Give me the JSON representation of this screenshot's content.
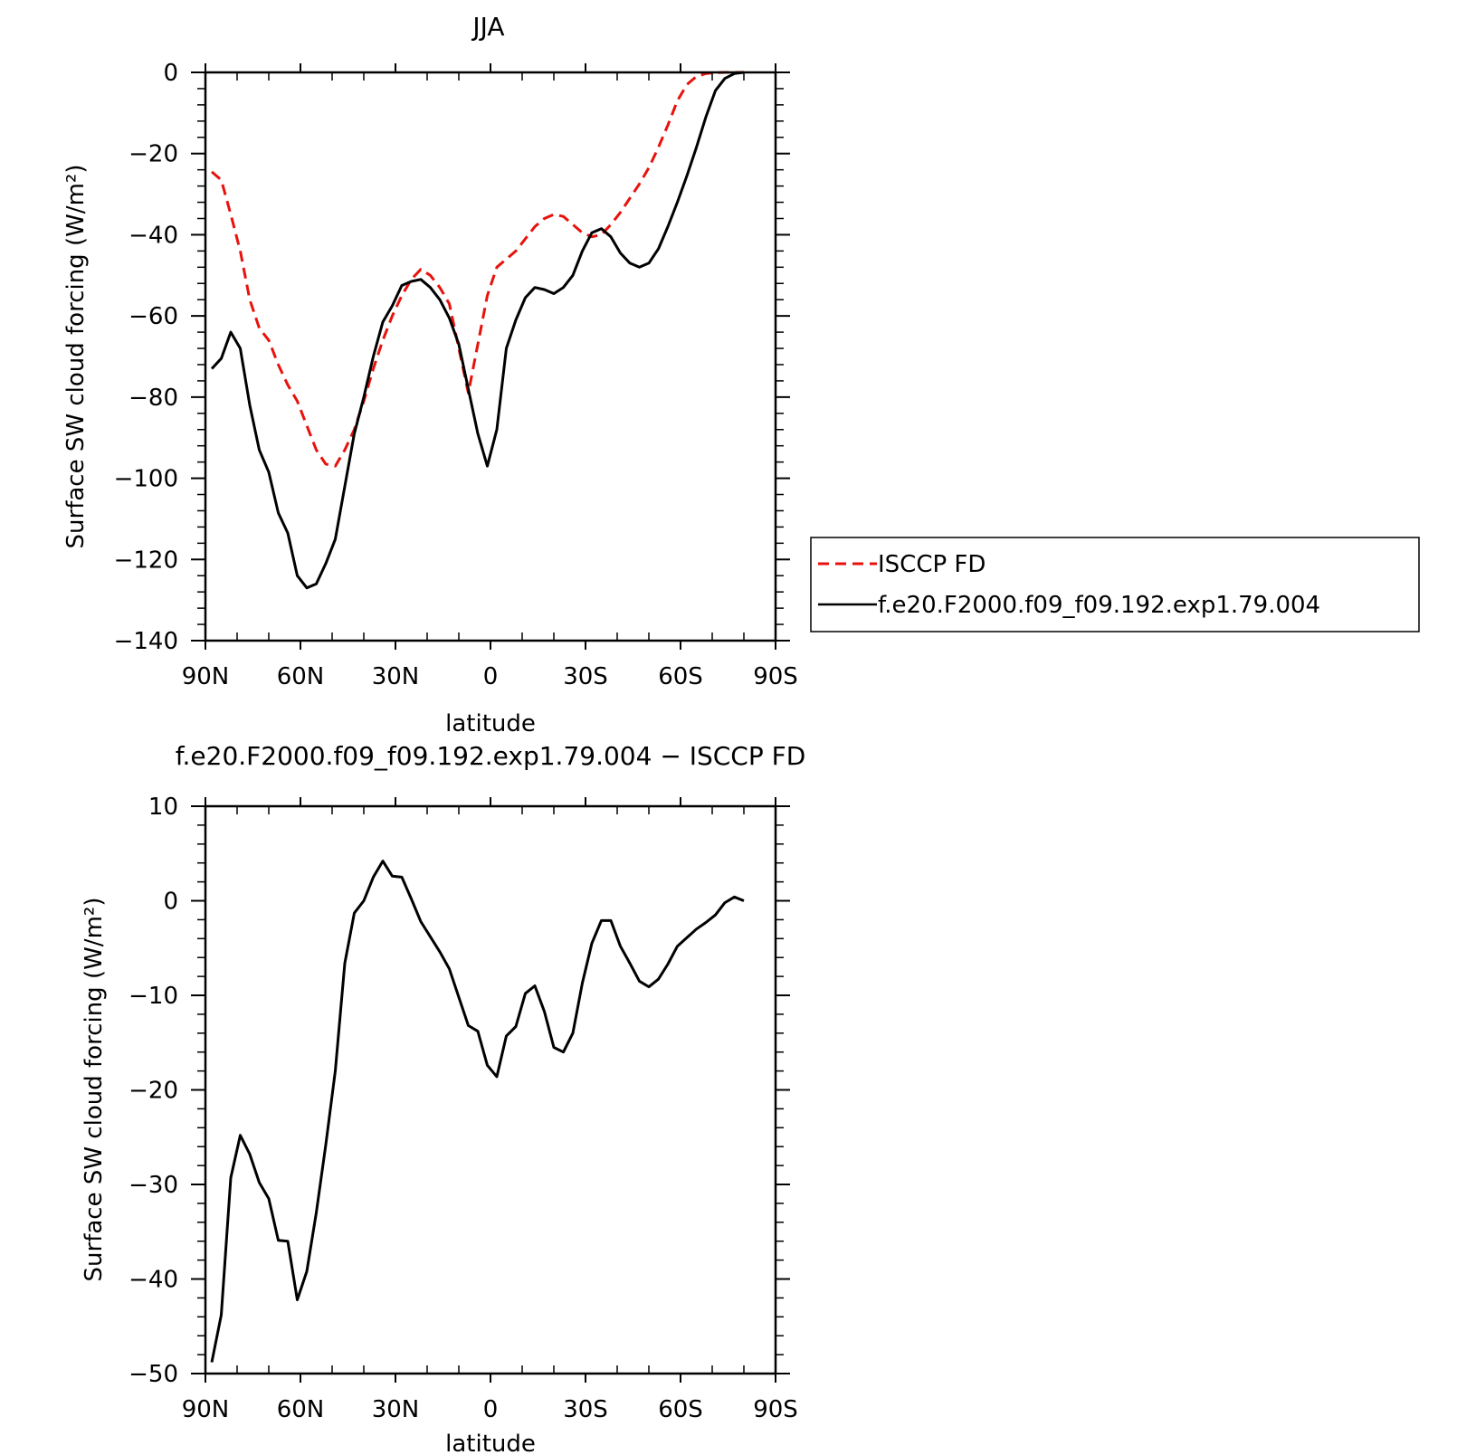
{
  "chart_data": [
    {
      "type": "line",
      "title": "JJA",
      "xlabel": "latitude",
      "ylabel": "Surface SW cloud forcing (W/m²)",
      "xlim": [
        90,
        -90
      ],
      "ylim": [
        -140,
        0
      ],
      "x_ticks": [
        90,
        60,
        30,
        0,
        -30,
        -60,
        -90
      ],
      "x_tick_labels": [
        "90N",
        "60N",
        "30N",
        "0",
        "30S",
        "60S",
        "90S"
      ],
      "y_ticks": [
        0,
        -20,
        -40,
        -60,
        -80,
        -100,
        -120,
        -140
      ],
      "y_tick_labels": [
        "0",
        "−20",
        "−40",
        "−60",
        "−80",
        "−100",
        "−120",
        "−140"
      ],
      "legend": {
        "position": "right"
      },
      "series": [
        {
          "name": "ISCCP FD",
          "color": "#e8120c",
          "style": "dashed",
          "x": [
            88,
            85,
            82,
            79,
            76,
            73,
            70,
            67,
            64,
            61,
            58,
            55,
            52,
            49,
            46,
            43,
            40,
            37,
            34,
            31,
            28,
            25,
            22,
            19,
            16,
            13,
            10,
            7,
            4,
            1,
            -2,
            -5,
            -8,
            -11,
            -14,
            -17,
            -20,
            -23,
            -26,
            -29,
            -32,
            -35,
            -38,
            -41,
            -44,
            -47,
            -50,
            -53,
            -56,
            -59,
            -62,
            -65,
            -68,
            -71,
            -74,
            -77,
            -80
          ],
          "values": [
            -24.5,
            -26.5,
            -35,
            -44,
            -56,
            -63,
            -66,
            -72,
            -77,
            -81,
            -87,
            -93,
            -96.5,
            -97,
            -93,
            -88,
            -81,
            -73,
            -66,
            -60,
            -55,
            -51,
            -48.5,
            -50,
            -53,
            -57,
            -68,
            -79,
            -67,
            -55,
            -48,
            -46,
            -44,
            -41,
            -38,
            -36,
            -35,
            -35.5,
            -37.5,
            -39.5,
            -40.5,
            -40,
            -37.5,
            -34.5,
            -31,
            -27.5,
            -23.5,
            -18.5,
            -13,
            -7,
            -3,
            -1,
            -0.3,
            -0.1,
            0,
            0,
            0
          ]
        },
        {
          "name": "f.e20.F2000.f09_f09.192.exp1.79.004",
          "color": "#000000",
          "style": "solid",
          "x": [
            88,
            85,
            82,
            79,
            76,
            73,
            70,
            67,
            64,
            61,
            58,
            55,
            52,
            49,
            46,
            43,
            40,
            37,
            34,
            31,
            28,
            25,
            22,
            19,
            16,
            13,
            10,
            7,
            4,
            1,
            -2,
            -5,
            -8,
            -11,
            -14,
            -17,
            -20,
            -23,
            -26,
            -29,
            -32,
            -35,
            -38,
            -41,
            -44,
            -47,
            -50,
            -53,
            -56,
            -59,
            -62,
            -65,
            -68,
            -71,
            -74,
            -77,
            -80
          ],
          "values": [
            -73,
            -70.5,
            -64,
            -68,
            -82,
            -93,
            -98.5,
            -108.5,
            -113.5,
            -124,
            -127,
            -126,
            -121,
            -115,
            -102,
            -89,
            -80,
            -70,
            -61.5,
            -57.5,
            -52.5,
            -51.5,
            -51,
            -53,
            -56,
            -60.5,
            -67,
            -78,
            -89,
            -97,
            -88,
            -68,
            -61,
            -55.5,
            -53,
            -53.5,
            -54.5,
            -53,
            -50,
            -44,
            -39.5,
            -38.5,
            -40.5,
            -44.5,
            -47,
            -48,
            -47,
            -43.5,
            -38,
            -32,
            -25.5,
            -18.5,
            -11,
            -4.5,
            -1.5,
            -0.3,
            0
          ]
        }
      ]
    },
    {
      "type": "line",
      "title": "f.e20.F2000.f09_f09.192.exp1.79.004 − ISCCP FD",
      "xlabel": "latitude",
      "ylabel": "Surface SW cloud forcing (W/m²)",
      "xlim": [
        90,
        -90
      ],
      "ylim": [
        -50,
        10
      ],
      "x_ticks": [
        90,
        60,
        30,
        0,
        -30,
        -60,
        -90
      ],
      "x_tick_labels": [
        "90N",
        "60N",
        "30N",
        "0",
        "30S",
        "60S",
        "90S"
      ],
      "y_ticks": [
        10,
        0,
        -10,
        -20,
        -30,
        -40,
        -50
      ],
      "y_tick_labels": [
        "10",
        "0",
        "−10",
        "−20",
        "−30",
        "−40",
        "−50"
      ],
      "series": [
        {
          "color": "#000000",
          "style": "solid",
          "x": [
            88,
            85,
            82,
            79,
            76,
            73,
            70,
            67,
            64,
            61,
            58,
            55,
            52,
            49,
            46,
            43,
            40,
            37,
            34,
            31,
            28,
            25,
            22,
            19,
            16,
            13,
            10,
            7,
            4,
            1,
            -2,
            -5,
            -8,
            -11,
            -14,
            -17,
            -20,
            -23,
            -26,
            -29,
            -32,
            -35,
            -38,
            -41,
            -44,
            -47,
            -50,
            -53,
            -56,
            -59,
            -62,
            -65,
            -68,
            -71,
            -74,
            -77,
            -80
          ],
          "values": [
            -48.8,
            -43.8,
            -29.3,
            -24.8,
            -26.8,
            -29.8,
            -31.5,
            -35.9,
            -36,
            -42.2,
            -39.2,
            -33,
            -25.8,
            -18,
            -6.6,
            -1.3,
            0,
            2.5,
            4.2,
            2.6,
            2.5,
            0.2,
            -2.2,
            -3.8,
            -5.4,
            -7.2,
            -10.2,
            -13.2,
            -13.8,
            -17.4,
            -18.6,
            -14.3,
            -13.3,
            -9.8,
            -9,
            -11.7,
            -15.5,
            -16,
            -14,
            -8.7,
            -4.5,
            -2.1,
            -2.1,
            -4.8,
            -6.6,
            -8.5,
            -9.1,
            -8.3,
            -6.7,
            -4.8,
            -3.9,
            -3,
            -2.3,
            -1.5,
            -0.2,
            0.4,
            0
          ]
        }
      ]
    }
  ]
}
